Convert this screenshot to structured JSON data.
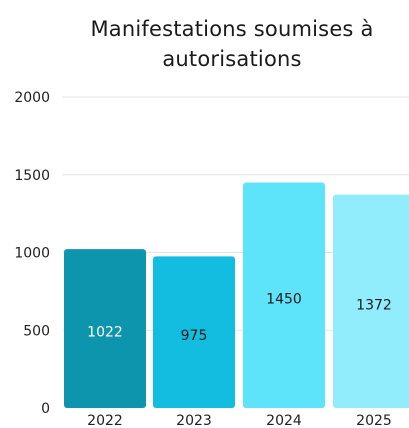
{
  "chart_data": {
    "type": "bar",
    "title": "Manifestations soumises à autorisations",
    "xlabel": "",
    "ylabel": "",
    "categories": [
      "2022",
      "2023",
      "2024",
      "2025"
    ],
    "values": [
      1022,
      975,
      1450,
      1372
    ],
    "data_labels": [
      "1022",
      "975",
      "1450",
      "1372"
    ],
    "ylim": [
      0,
      2000
    ],
    "yticks": [
      0,
      500,
      1000,
      1500,
      2000
    ],
    "grid": true,
    "legend": "none",
    "colors": {
      "bars": [
        "#0E95AE",
        "#13BDDF",
        "#5EE4FA",
        "#91EDFC"
      ],
      "label_text": [
        "#ffffff",
        "#1a1a1a",
        "#1a1a1a",
        "#1a1a1a"
      ],
      "grid": "#e6e6e6",
      "axis_text": "#222222"
    }
  }
}
